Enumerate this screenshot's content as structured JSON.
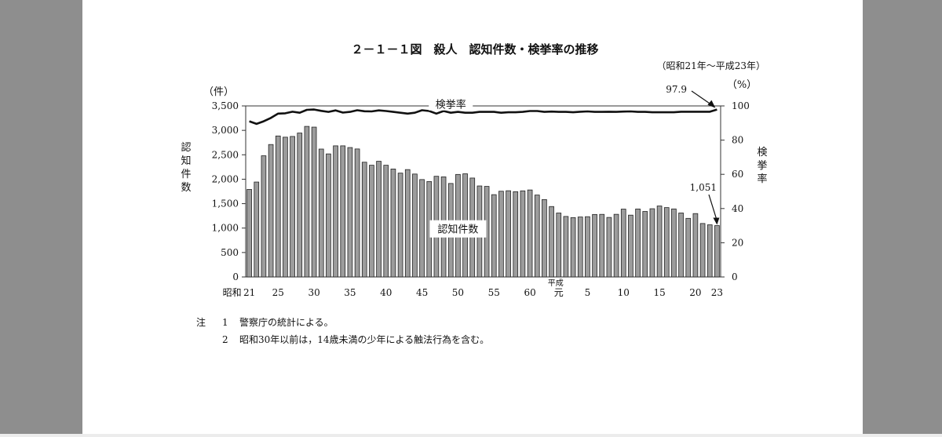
{
  "chart_data": {
    "type": "bar",
    "title": "２－１－１図　殺人　認知件数・検挙率の推移",
    "subtitle": "（昭和21年～平成23年）",
    "y_left_unit": "（件）",
    "y_right_unit": "（%）",
    "ylabel_left": "認知件数",
    "ylabel_right": "検挙率",
    "ylim_left": [
      0,
      3500
    ],
    "ylim_right": [
      0,
      100
    ],
    "yticks_left": [
      0,
      500,
      1000,
      1500,
      2000,
      2500,
      3000,
      3500
    ],
    "yticks_left_labels": [
      "0",
      "500",
      "1,000",
      "1,500",
      "2,000",
      "2,500",
      "3,000",
      "3,500"
    ],
    "yticks_right": [
      0,
      20,
      40,
      60,
      80,
      100
    ],
    "yticks_right_labels": [
      "0",
      "20",
      "40",
      "60",
      "80",
      "100"
    ],
    "grid": false,
    "x_tick_labels": [
      {
        "index": 0,
        "label": "21"
      },
      {
        "index": 4,
        "label": "25"
      },
      {
        "index": 9,
        "label": "30"
      },
      {
        "index": 14,
        "label": "35"
      },
      {
        "index": 19,
        "label": "40"
      },
      {
        "index": 24,
        "label": "45"
      },
      {
        "index": 29,
        "label": "50"
      },
      {
        "index": 34,
        "label": "55"
      },
      {
        "index": 39,
        "label": "60"
      },
      {
        "index": 43,
        "label": "元"
      },
      {
        "index": 47,
        "label": "5"
      },
      {
        "index": 52,
        "label": "10"
      },
      {
        "index": 57,
        "label": "15"
      },
      {
        "index": 62,
        "label": "20"
      },
      {
        "index": 65,
        "label": "23"
      }
    ],
    "x_era_showa": "昭和",
    "x_era_heisei": "平成",
    "categories": [
      "昭和21",
      "昭和22",
      "昭和23",
      "昭和24",
      "昭和25",
      "昭和26",
      "昭和27",
      "昭和28",
      "昭和29",
      "昭和30",
      "昭和31",
      "昭和32",
      "昭和33",
      "昭和34",
      "昭和35",
      "昭和36",
      "昭和37",
      "昭和38",
      "昭和39",
      "昭和40",
      "昭和41",
      "昭和42",
      "昭和43",
      "昭和44",
      "昭和45",
      "昭和46",
      "昭和47",
      "昭和48",
      "昭和49",
      "昭和50",
      "昭和51",
      "昭和52",
      "昭和53",
      "昭和54",
      "昭和55",
      "昭和56",
      "昭和57",
      "昭和58",
      "昭和59",
      "昭和60",
      "昭和61",
      "昭和62",
      "昭和63",
      "平成元",
      "平成2",
      "平成3",
      "平成4",
      "平成5",
      "平成6",
      "平成7",
      "平成8",
      "平成9",
      "平成10",
      "平成11",
      "平成12",
      "平成13",
      "平成14",
      "平成15",
      "平成16",
      "平成17",
      "平成18",
      "平成19",
      "平成20",
      "平成21",
      "平成22",
      "平成23"
    ],
    "series": [
      {
        "name": "認知件数",
        "kind": "bar",
        "axis": "left",
        "values": [
          1791,
          1942,
          2480,
          2710,
          2885,
          2860,
          2875,
          2945,
          3081,
          3066,
          2617,
          2518,
          2683,
          2683,
          2648,
          2619,
          2348,
          2286,
          2367,
          2286,
          2209,
          2125,
          2197,
          2106,
          1993,
          1953,
          2060,
          2048,
          1913,
          2098,
          2111,
          2024,
          1862,
          1853,
          1684,
          1754,
          1764,
          1745,
          1762,
          1780,
          1676,
          1584,
          1441,
          1308,
          1238,
          1215,
          1227,
          1233,
          1279,
          1281,
          1218,
          1282,
          1388,
          1265,
          1391,
          1340,
          1396,
          1452,
          1419,
          1392,
          1309,
          1199,
          1297,
          1094,
          1067,
          1051
        ]
      },
      {
        "name": "検挙率",
        "kind": "line",
        "axis": "right",
        "values": [
          91.0,
          89.5,
          91.0,
          93.0,
          95.5,
          95.7,
          96.6,
          96.0,
          97.7,
          97.9,
          97.1,
          96.5,
          97.4,
          96.1,
          96.5,
          97.5,
          96.9,
          96.8,
          97.4,
          97.0,
          96.5,
          96.0,
          95.5,
          96.0,
          97.5,
          97.0,
          95.5,
          97.0,
          96.0,
          96.5,
          96.0,
          96.0,
          96.5,
          96.5,
          96.5,
          96.0,
          96.3,
          96.3,
          96.5,
          97.0,
          97.0,
          96.5,
          96.7,
          96.5,
          96.5,
          96.3,
          96.6,
          96.8,
          96.5,
          96.5,
          96.6,
          96.5,
          96.7,
          96.8,
          96.5,
          96.5,
          96.3,
          96.3,
          96.3,
          96.3,
          96.6,
          96.6,
          96.6,
          96.6,
          96.6,
          97.9
        ]
      }
    ],
    "annotations": [
      {
        "text": "97.9",
        "target": "検挙率 平成23"
      },
      {
        "text": "1,051",
        "target": "認知件数 平成23"
      }
    ],
    "notes": {
      "label": "注",
      "items": [
        {
          "num": "1",
          "text": "警察庁の統計による。"
        },
        {
          "num": "2",
          "text": "昭和30年以前は，14歳未満の少年による触法行為を含む。"
        }
      ]
    }
  }
}
